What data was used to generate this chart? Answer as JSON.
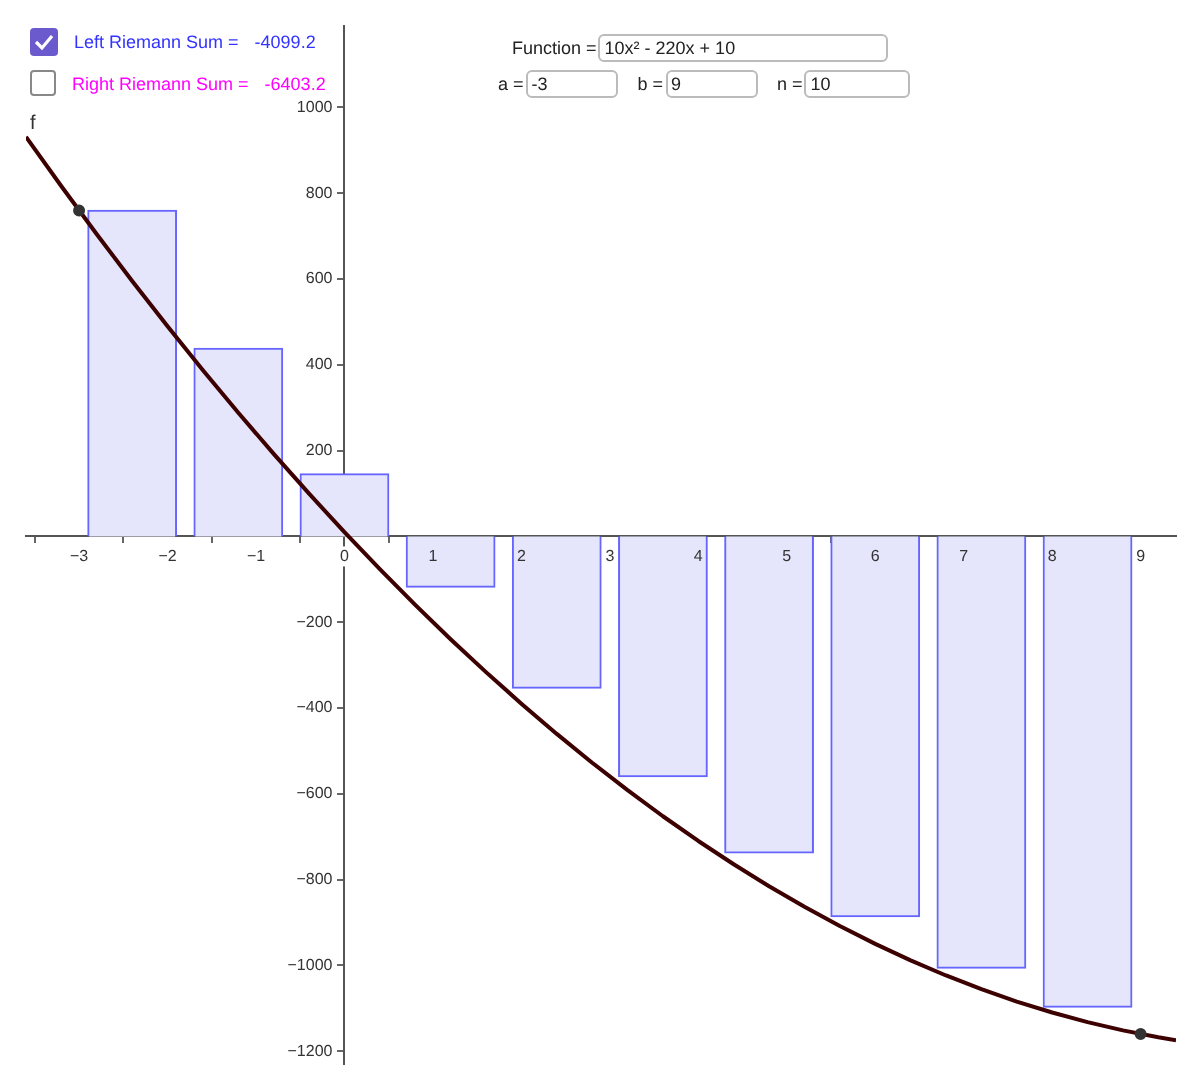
{
  "chart_data": {
    "type": "bar",
    "xlim": [
      -3.6,
      9.4
    ],
    "ylim": [
      -1230,
      1190
    ],
    "xticks": [
      {
        "value": -3,
        "label": "−3"
      },
      {
        "value": -2,
        "label": "−2"
      },
      {
        "value": -1,
        "label": "−1"
      },
      0,
      1,
      2,
      3,
      4,
      5,
      6,
      7,
      8,
      9
    ],
    "yticks": [
      {
        "value": -1200,
        "label": "−1200"
      },
      {
        "value": -1000,
        "label": "−1000"
      },
      {
        "value": -800,
        "label": "−800"
      },
      {
        "value": -600,
        "label": "−600"
      },
      {
        "value": -400,
        "label": "−400"
      },
      {
        "value": -200,
        "label": "−200"
      },
      200,
      400,
      600,
      800,
      1000
    ],
    "grid": false,
    "legend": false,
    "annotations": [
      "f",
      "Left Riemann Sum =",
      "-4099.2",
      "Right Riemann Sum =",
      "-6403.2",
      "Function =",
      "10x² - 220x + 10",
      "a =",
      "-3",
      "b =",
      "9",
      "n =",
      "10"
    ],
    "series": [
      {
        "color": "#e5e5fb",
        "x": [
          -2.4,
          -1.2,
          0,
          1.2,
          2.4,
          3.6,
          4.8,
          6,
          7.2,
          8.4
        ],
        "values": [
          760,
          438.4,
          145.6,
          -118.4,
          -353.6,
          -560,
          -737.6,
          -886.4,
          -1006.4,
          -1097.6
        ]
      },
      {
        "type": "line",
        "color": "#3d0000",
        "marker": "none",
        "x": [
          -3.6,
          -3.2,
          -2.8,
          -2.4,
          -2,
          -1.6,
          -1.2,
          -0.8,
          -0.4,
          0,
          0.4,
          0.8,
          1.2,
          1.6,
          2,
          2.4,
          2.8,
          3.2,
          3.6,
          4,
          4.4,
          4.8,
          5.2,
          5.6,
          6,
          6.4,
          6.8,
          7.2,
          7.6,
          8,
          8.4,
          8.8,
          9.2,
          9.4
        ],
        "values": [
          931.6,
          816.4,
          704.4,
          595.6,
          490,
          387.6,
          288.4,
          192.4,
          99.6,
          10,
          -76.4,
          -159.6,
          -239.6,
          -316.4,
          -390,
          -460.4,
          -527.6,
          -591.6,
          -652.4,
          -710,
          -764.4,
          -815.6,
          -863.6,
          -908.4,
          -950,
          -988.4,
          -1023.6,
          -1055.6,
          -1084.4,
          -1110,
          -1132.4,
          -1151.6,
          -1167.6,
          -1174.4
        ]
      },
      {
        "type": "scatter",
        "color": "#333333",
        "marker": "circle",
        "x": [
          -3,
          9
        ],
        "values": [
          760,
          -1160
        ]
      }
    ]
  }
}
